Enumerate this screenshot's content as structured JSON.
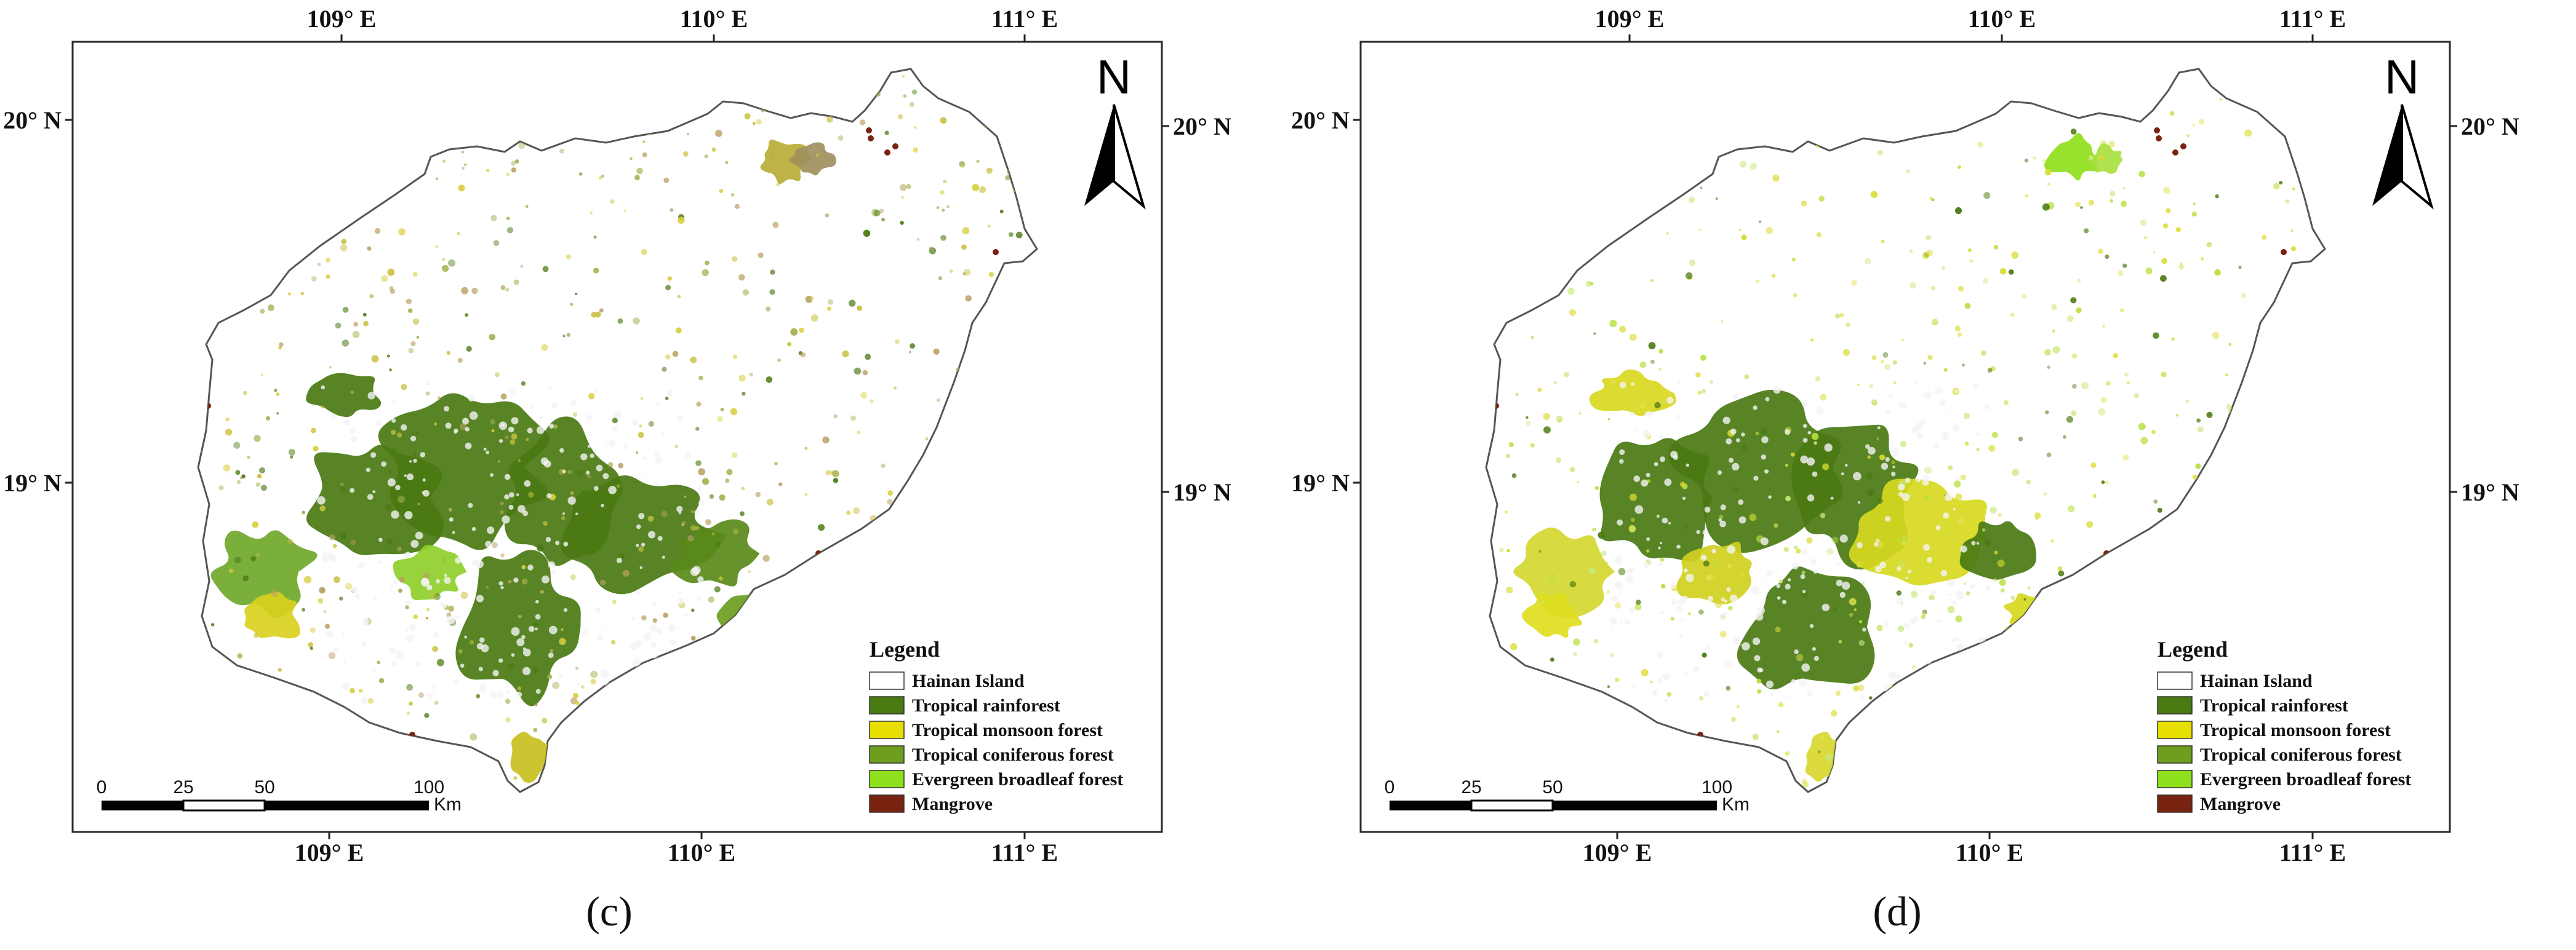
{
  "panels": [
    {
      "id": "c",
      "caption": "(c)",
      "variant": "c",
      "top_ticks": [
        "109° E",
        "110° E",
        "111° E"
      ],
      "bottom_ticks": [
        "109° E",
        "110° E",
        "111° E"
      ],
      "left_ticks": [
        "20° N",
        "19° N"
      ],
      "right_ticks": [
        "20° N",
        "19° N"
      ],
      "north_label": "N",
      "legend": {
        "title": "Legend",
        "items": [
          {
            "label": "Hainan Island",
            "color": "#ffffff"
          },
          {
            "label": "Tropical rainforest",
            "color": "#4a7a12"
          },
          {
            "label": "Tropical monsoon  forest",
            "color": "#e6df00"
          },
          {
            "label": "Tropical coniferous forest",
            "color": "#6e9e1e"
          },
          {
            "label": "Evergreen broadleaf forest",
            "color": "#8fe01c"
          },
          {
            "label": "Mangrove",
            "color": "#7a2210"
          }
        ]
      },
      "scale_bar": {
        "labels": [
          "0",
          "25",
          "50",
          "100"
        ],
        "unit": "Km"
      }
    },
    {
      "id": "d",
      "caption": "(d)",
      "variant": "d",
      "top_ticks": [
        "109° E",
        "110° E",
        "111° E"
      ],
      "bottom_ticks": [
        "109° E",
        "110° E",
        "111° E"
      ],
      "left_ticks": [
        "20° N",
        "19° N"
      ],
      "right_ticks": [
        "20° N",
        "19° N"
      ],
      "north_label": "N",
      "legend": {
        "title": "Legend",
        "items": [
          {
            "label": "Hainan Island",
            "color": "#ffffff"
          },
          {
            "label": "Tropical rainforest",
            "color": "#4a7a12"
          },
          {
            "label": "Tropical monsoon  forest",
            "color": "#e6df00"
          },
          {
            "label": "Tropical coniferous forest",
            "color": "#6e9e1e"
          },
          {
            "label": "Evergreen broadleaf forest",
            "color": "#8fe01c"
          },
          {
            "label": "Mangrove",
            "color": "#7a2210"
          }
        ]
      },
      "scale_bar": {
        "labels": [
          "0",
          "25",
          "50",
          "100"
        ],
        "unit": "Km"
      }
    }
  ]
}
